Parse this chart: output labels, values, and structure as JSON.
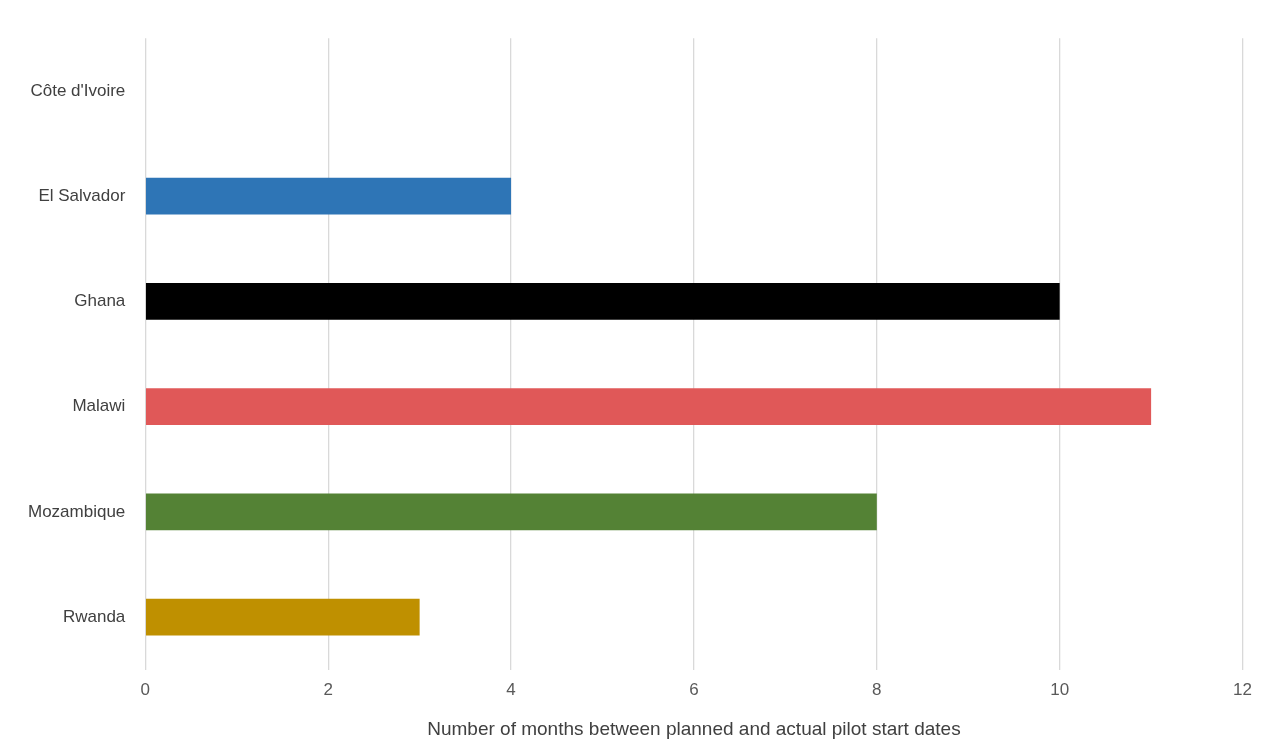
{
  "chart_data": {
    "type": "bar",
    "orientation": "horizontal",
    "xlabel": "Number of months between planned and actual pilot start dates",
    "categories": [
      "Côte d'Ivoire",
      "El Salvador",
      "Ghana",
      "Malawi",
      "Mozambique",
      "Rwanda"
    ],
    "values": [
      0,
      4,
      10,
      11,
      8,
      3
    ],
    "colors": [
      "#2e75b6",
      "#2e75b6",
      "#000000",
      "#e05858",
      "#548235",
      "#bf9000"
    ],
    "xlim": [
      0,
      12
    ],
    "xticks": [
      0,
      2,
      4,
      6,
      8,
      10,
      12
    ],
    "grid": "x",
    "legend": false
  }
}
